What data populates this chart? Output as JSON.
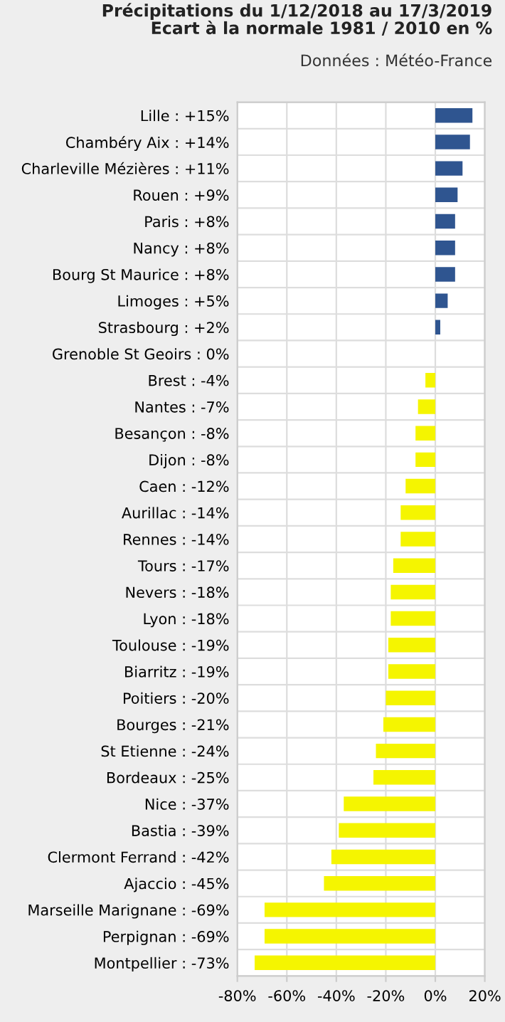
{
  "chart_data": {
    "type": "bar",
    "orientation": "horizontal",
    "title": "Précipitations du 1/12/2018 au 17/3/2019\nEcart à la normale 1981 / 2010 en %",
    "subtitle": "Données : Météo-France",
    "categories": [
      "Lille : +15%",
      "Chambéry Aix : +14%",
      "Charleville Mézières : +11%",
      "Rouen : +9%",
      "Paris : +8%",
      "Nancy : +8%",
      "Bourg St Maurice : +8%",
      "Limoges : +5%",
      "Strasbourg : +2%",
      "Grenoble St Geoirs : 0%",
      "Brest : -4%",
      "Nantes : -7%",
      "Besançon : -8%",
      "Dijon : -8%",
      "Caen : -12%",
      "Aurillac : -14%",
      "Rennes : -14%",
      "Tours : -17%",
      "Nevers : -18%",
      "Lyon : -18%",
      "Toulouse : -19%",
      "Biarritz : -19%",
      "Poitiers : -20%",
      "Bourges : -21%",
      "St Etienne : -24%",
      "Bordeaux : -25%",
      "Nice : -37%",
      "Bastia : -39%",
      "Clermont Ferrand : -42%",
      "Ajaccio : -45%",
      "Marseille Marignane : -69%",
      "Perpignan : -69%",
      "Montpellier : -73%"
    ],
    "values": [
      15,
      14,
      11,
      9,
      8,
      8,
      8,
      5,
      2,
      0,
      -4,
      -7,
      -8,
      -8,
      -12,
      -14,
      -14,
      -17,
      -18,
      -18,
      -19,
      -19,
      -20,
      -21,
      -24,
      -25,
      -37,
      -39,
      -42,
      -45,
      -69,
      -69,
      -73
    ],
    "colors": [
      "#2f5590",
      "#2f5590",
      "#2f5590",
      "#2f5590",
      "#2f5590",
      "#2f5590",
      "#2f5590",
      "#2f5590",
      "#2f5590",
      "#f5f500",
      "#f5f500",
      "#f5f500",
      "#f5f500",
      "#f5f500",
      "#f5f500",
      "#f5f500",
      "#f5f500",
      "#f5f500",
      "#f5f500",
      "#f5f500",
      "#f5f500",
      "#f5f500",
      "#f5f500",
      "#f5f500",
      "#f5f500",
      "#f5f500",
      "#f5f500",
      "#f5f500",
      "#f5f500",
      "#f5f500",
      "#f5f500",
      "#f5f500",
      "#f5f500"
    ],
    "xlim": [
      -80,
      20
    ],
    "xticks": [
      {
        "value": -80,
        "label": "-80%"
      },
      {
        "value": -60,
        "label": "-60%"
      },
      {
        "value": -40,
        "label": "-40%"
      },
      {
        "value": -20,
        "label": "-20%"
      },
      {
        "value": 0,
        "label": "0%"
      },
      {
        "value": 20,
        "label": "20%"
      }
    ],
    "grid": true
  }
}
